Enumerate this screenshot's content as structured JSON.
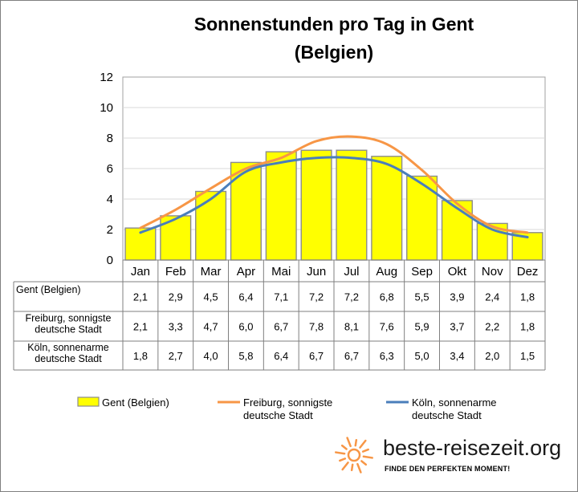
{
  "chart_data": {
    "type": "bar",
    "title": "Sonnenstunden pro Tag in Gent (Belgien)",
    "title_lines": [
      "Sonnenstunden pro Tag in Gent",
      "(Belgien)"
    ],
    "categories": [
      "Jan",
      "Feb",
      "Mar",
      "Apr",
      "Mai",
      "Jun",
      "Jul",
      "Aug",
      "Sep",
      "Okt",
      "Nov",
      "Dez"
    ],
    "ylim": [
      0,
      12
    ],
    "yticks": [
      "0",
      "2",
      "4",
      "6",
      "8",
      "10",
      "12"
    ],
    "grid": true,
    "series": [
      {
        "name": "Gent (Belgien)",
        "kind": "bar",
        "color": "#ffff00",
        "values": [
          2.1,
          2.9,
          4.5,
          6.4,
          7.1,
          7.2,
          7.2,
          6.8,
          5.5,
          3.9,
          2.4,
          1.8
        ],
        "labels": [
          "2,1",
          "2,9",
          "4,5",
          "6,4",
          "7,1",
          "7,2",
          "7,2",
          "6,8",
          "5,5",
          "3,9",
          "2,4",
          "1,8"
        ],
        "row_label_lines": [
          "Gent (Belgien)"
        ],
        "legend_lines": [
          "Gent (Belgien)"
        ]
      },
      {
        "name": "Freiburg, sonnigste deutsche Stadt",
        "kind": "line",
        "color": "#f79646",
        "values": [
          2.1,
          3.3,
          4.7,
          6.0,
          6.7,
          7.8,
          8.1,
          7.6,
          5.9,
          3.7,
          2.2,
          1.8
        ],
        "labels": [
          "2,1",
          "3,3",
          "4,7",
          "6,0",
          "6,7",
          "7,8",
          "8,1",
          "7,6",
          "5,9",
          "3,7",
          "2,2",
          "1,8"
        ],
        "row_label_lines": [
          "Freiburg, sonnigste",
          "deutsche Stadt"
        ],
        "legend_lines": [
          "Freiburg, sonnigste",
          "deutsche Stadt"
        ]
      },
      {
        "name": "Köln, sonnenarme deutsche Stadt",
        "kind": "line",
        "color": "#4a7ebb",
        "values": [
          1.8,
          2.7,
          4.0,
          5.8,
          6.4,
          6.7,
          6.7,
          6.3,
          5.0,
          3.4,
          2.0,
          1.5
        ],
        "labels": [
          "1,8",
          "2,7",
          "4,0",
          "5,8",
          "6,4",
          "6,7",
          "6,7",
          "6,3",
          "5,0",
          "3,4",
          "2,0",
          "1,5"
        ],
        "row_label_lines": [
          "Köln, sonnenarme",
          "deutsche Stadt"
        ],
        "legend_lines": [
          "Köln, sonnenarme",
          "deutsche Stadt"
        ]
      }
    ]
  },
  "branding": {
    "site": "beste-reisezeit.org",
    "tagline": "FINDE DEN PERFEKTEN MOMENT!",
    "sun_color": "#f79646"
  }
}
